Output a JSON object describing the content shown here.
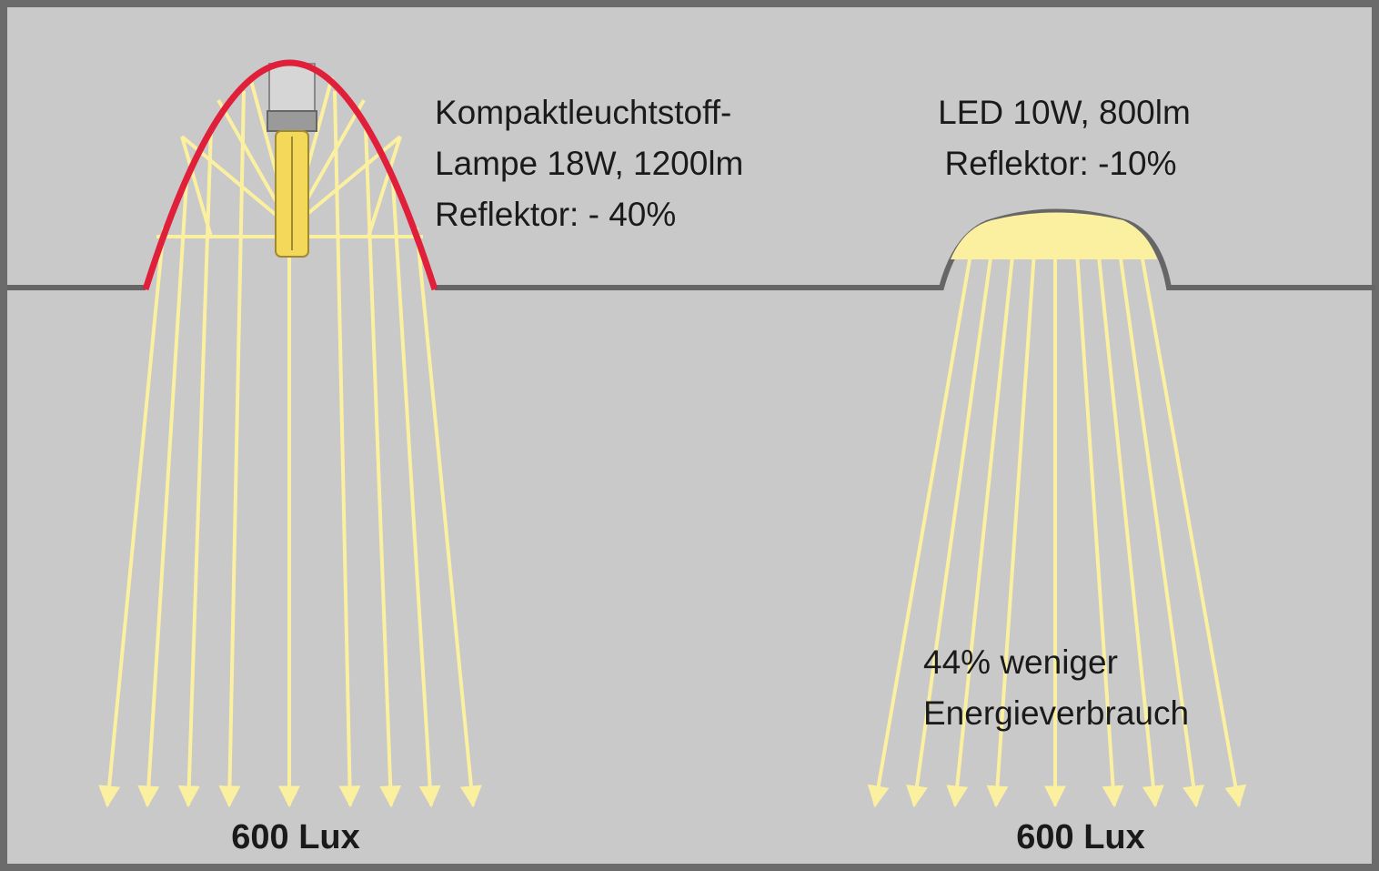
{
  "lamps": [
    {
      "label_lines": [
        "Kompaktleuchtstoff-",
        "Lampe 18W, 1200lm",
        "Reflektor: - 40%"
      ],
      "result": "600 Lux"
    },
    {
      "label_lines": [
        "LED 10W, 800lm",
        "Reflektor: -10%"
      ],
      "result": "600 Lux"
    }
  ],
  "note_lines": [
    "44% weniger",
    "Energieverbrauch"
  ]
}
